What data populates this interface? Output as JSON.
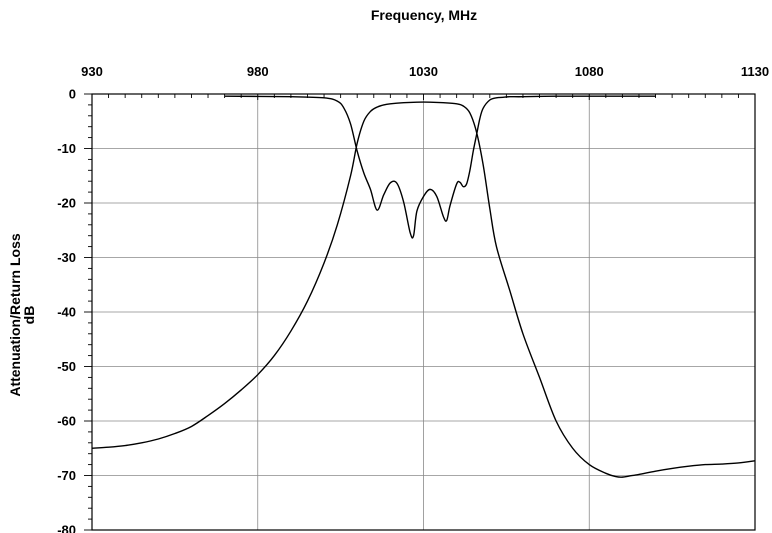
{
  "chart_data": {
    "type": "line",
    "xlabel": "Frequency, MHz",
    "ylabel_line1": "Attenuation/Return Loss",
    "ylabel_line2": "dB",
    "xlim": [
      930,
      1130
    ],
    "ylim": [
      -80,
      0
    ],
    "x_ticks": [
      930,
      980,
      1030,
      1080,
      1130
    ],
    "y_ticks": [
      0,
      -10,
      -20,
      -30,
      -40,
      -50,
      -60,
      -70,
      -80
    ],
    "x_axis_position": "top",
    "grid": true,
    "line_color": "#000000",
    "series": [
      {
        "x": [
          930,
          935,
          940,
          945,
          950,
          955,
          960,
          965,
          970,
          975,
          980,
          985,
          990,
          995,
          1000,
          1004,
          1008,
          1010,
          1012,
          1014,
          1016,
          1018,
          1020,
          1024,
          1028,
          1032,
          1036,
          1040,
          1042,
          1044,
          1046,
          1048,
          1050,
          1052,
          1056,
          1060,
          1065,
          1070,
          1075,
          1080,
          1085,
          1088,
          1090,
          1092,
          1095,
          1100,
          1105,
          1110,
          1115,
          1120,
          1125,
          1130
        ],
        "y": [
          -65,
          -64.8,
          -64.5,
          -64,
          -63.3,
          -62.3,
          -61,
          -59,
          -56.8,
          -54.3,
          -51.5,
          -48,
          -43.5,
          -38,
          -31,
          -24,
          -15,
          -9,
          -5,
          -3.2,
          -2.4,
          -2,
          -1.8,
          -1.6,
          -1.5,
          -1.5,
          -1.6,
          -1.8,
          -2.2,
          -3.5,
          -7,
          -13,
          -21,
          -28,
          -36,
          -44,
          -52,
          -60,
          -65,
          -68,
          -69.6,
          -70.2,
          -70.3,
          -70.1,
          -69.8,
          -69.2,
          -68.7,
          -68.3,
          -68,
          -67.9,
          -67.7,
          -67.3
        ]
      },
      {
        "x": [
          970,
          990,
          1000,
          1004,
          1006,
          1008,
          1010,
          1012,
          1014,
          1016,
          1018,
          1020,
          1022,
          1024,
          1026,
          1027,
          1028,
          1030,
          1032,
          1034,
          1036,
          1037,
          1038,
          1040,
          1041,
          1042,
          1043,
          1044,
          1045,
          1046,
          1047,
          1048,
          1050,
          1052,
          1054,
          1056,
          1060,
          1070,
          1080,
          1100
        ],
        "y": [
          -0.4,
          -0.5,
          -0.7,
          -1.3,
          -2.6,
          -5.5,
          -10.5,
          -14.5,
          -17.5,
          -21.3,
          -18.5,
          -16.3,
          -16.4,
          -19.8,
          -25.5,
          -26,
          -21.5,
          -18.8,
          -17.5,
          -18.8,
          -22.5,
          -23.2,
          -20.5,
          -16.5,
          -16.2,
          -17,
          -16.5,
          -14,
          -10.5,
          -7.5,
          -4.5,
          -2.6,
          -1.1,
          -0.7,
          -0.6,
          -0.5,
          -0.5,
          -0.4,
          -0.4,
          -0.4
        ]
      }
    ]
  }
}
